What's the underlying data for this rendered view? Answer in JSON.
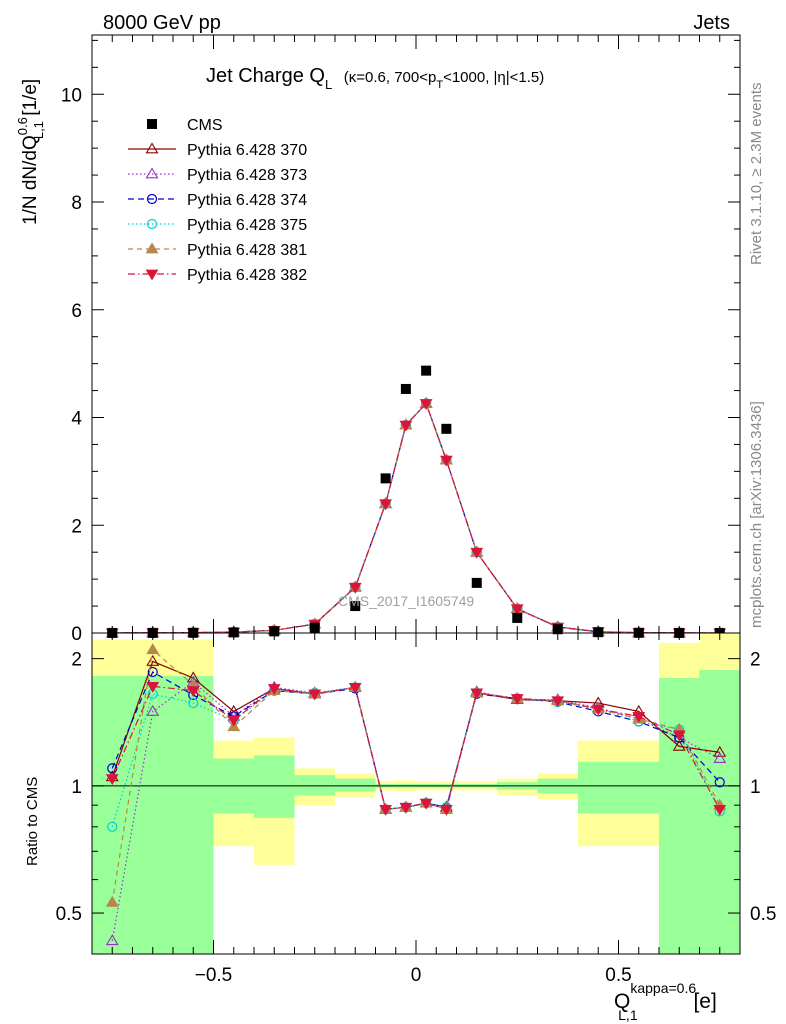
{
  "header": {
    "left": "8000 GeV pp",
    "right": "Jets"
  },
  "side_labels": {
    "rivet": "Rivet 3.1.10, ≥ 2.3M events",
    "mcplots": "mcplots.cern.ch [arXiv:1306.3436]"
  },
  "watermark": "CMS_2017_I1605749",
  "chart_data": {
    "type": "scatter",
    "title_main": "Jet Charge Q",
    "title_main_sub": "L",
    "title_cond_a": "(κ=0.6, 700<p",
    "title_cond_sub": "T",
    "title_cond_b": "<1000, |η|<1.5)",
    "ylabel_main_a": "1/N dN/dQ",
    "ylabel_main_sup": "0.6",
    "ylabel_main_sub": "L,1",
    "ylabel_main_b": " [1/e]",
    "ylabel_ratio": "Ratio to CMS",
    "xlabel_a": "Q",
    "xlabel_sup": "kappa=0.6",
    "xlabel_sub": "L,1",
    "xlabel_b": " [e]",
    "xlim": [
      -0.8,
      0.8
    ],
    "ylim_main": [
      0,
      11.1
    ],
    "ylim_ratio": [
      0.4,
      2.3
    ],
    "ratio_log_scale": true,
    "yticks_main": [
      "0",
      "2",
      "4",
      "6",
      "8",
      "10"
    ],
    "yticks_ratio": [
      "0.5",
      "1",
      "2"
    ],
    "xticks": [
      "−0.5",
      "0",
      "0.5"
    ],
    "legend_position": "top-left",
    "x": [
      -0.75,
      -0.65,
      -0.55,
      -0.45,
      -0.35,
      -0.25,
      -0.15,
      -0.075,
      -0.025,
      0.025,
      0.075,
      0.15,
      0.25,
      0.35,
      0.45,
      0.55,
      0.65,
      0.75
    ],
    "data": {
      "name": "CMS",
      "color": "#000000",
      "values": [
        0.001,
        0.002,
        0.004,
        0.011,
        0.03,
        0.1,
        0.5,
        2.87,
        4.53,
        4.87,
        3.79,
        0.93,
        0.28,
        0.07,
        0.015,
        0.004,
        0.0015,
        0.001
      ]
    },
    "band_edges": [
      -0.8,
      -0.6,
      -0.5,
      -0.4,
      -0.3,
      -0.2,
      -0.1,
      -0.05,
      0.0,
      0.05,
      0.1,
      0.2,
      0.3,
      0.4,
      0.5,
      0.6,
      0.7,
      0.8
    ],
    "band_yellow": [
      [
        0.4,
        2.22
      ],
      [
        0.4,
        2.22
      ],
      [
        0.72,
        1.28
      ],
      [
        0.65,
        1.3
      ],
      [
        0.9,
        1.1
      ],
      [
        0.94,
        1.07
      ],
      [
        0.975,
        1.025
      ],
      [
        0.97,
        1.03
      ],
      [
        0.975,
        1.025
      ],
      [
        0.975,
        1.025
      ],
      [
        0.975,
        1.025
      ],
      [
        0.95,
        1.04
      ],
      [
        0.93,
        1.07
      ],
      [
        0.72,
        1.28
      ],
      [
        0.72,
        1.28
      ],
      [
        0.4,
        2.18
      ],
      [
        0.4,
        2.3
      ]
    ],
    "band_green": [
      [
        0.4,
        1.82
      ],
      [
        0.4,
        1.82
      ],
      [
        0.86,
        1.16
      ],
      [
        0.84,
        1.18
      ],
      [
        0.95,
        1.06
      ],
      [
        0.97,
        1.04
      ],
      [
        0.99,
        1.01
      ],
      [
        0.99,
        1.01
      ],
      [
        0.99,
        1.01
      ],
      [
        0.99,
        1.01
      ],
      [
        0.99,
        1.01
      ],
      [
        0.98,
        1.02
      ],
      [
        0.96,
        1.04
      ],
      [
        0.86,
        1.14
      ],
      [
        0.86,
        1.14
      ],
      [
        0.4,
        1.8
      ],
      [
        0.4,
        1.88
      ]
    ],
    "series": [
      {
        "name": "Pythia 6.428 370",
        "color": "#8b0000",
        "dash": "",
        "marker": "triangle-open",
        "values": [
          0.0011,
          0.004,
          0.0072,
          0.017,
          0.05,
          0.165,
          0.85,
          2.4,
          3.86,
          4.26,
          3.21,
          1.5,
          0.45,
          0.112,
          0.024,
          0.0056,
          0.0018,
          0.0012
        ],
        "ratio": [
          1.05,
          1.97,
          1.8,
          1.5,
          1.7,
          1.65,
          1.71,
          0.88,
          0.89,
          0.91,
          0.89,
          1.66,
          1.6,
          1.59,
          1.57,
          1.5,
          1.24,
          1.2
        ]
      },
      {
        "name": "Pythia 6.428 373",
        "color": "#9932cc",
        "dash": "1.5,2.5",
        "marker": "triangle-open",
        "values": [
          0.0004,
          0.003,
          0.007,
          0.016,
          0.05,
          0.165,
          0.85,
          2.4,
          3.86,
          4.26,
          3.21,
          1.5,
          0.45,
          0.112,
          0.023,
          0.0055,
          0.0018,
          0.0012
        ],
        "ratio": [
          0.43,
          1.5,
          1.76,
          1.46,
          1.71,
          1.66,
          1.71,
          0.88,
          0.89,
          0.91,
          0.88,
          1.67,
          1.6,
          1.6,
          1.53,
          1.44,
          1.3,
          1.16
        ]
      },
      {
        "name": "Pythia 6.428 374",
        "color": "#0000cd",
        "dash": "6,4",
        "marker": "circle-open",
        "values": [
          0.0011,
          0.0037,
          0.0066,
          0.016,
          0.05,
          0.165,
          0.85,
          2.4,
          3.86,
          4.26,
          3.21,
          1.5,
          0.45,
          0.11,
          0.022,
          0.0054,
          0.0018,
          0.001
        ],
        "ratio": [
          1.1,
          1.86,
          1.64,
          1.46,
          1.68,
          1.65,
          1.7,
          0.88,
          0.89,
          0.91,
          0.89,
          1.65,
          1.61,
          1.58,
          1.5,
          1.42,
          1.3,
          1.02
        ]
      },
      {
        "name": "Pythia 6.428 375",
        "color": "#00ced1",
        "dash": "1.5,2.5",
        "marker": "circle-open",
        "values": [
          0.0008,
          0.0033,
          0.0062,
          0.016,
          0.05,
          0.165,
          0.85,
          2.4,
          3.86,
          4.26,
          3.21,
          1.5,
          0.45,
          0.11,
          0.022,
          0.0054,
          0.0018,
          0.0009
        ],
        "ratio": [
          0.8,
          1.65,
          1.57,
          1.43,
          1.68,
          1.66,
          1.71,
          0.88,
          0.89,
          0.91,
          0.89,
          1.66,
          1.61,
          1.58,
          1.52,
          1.42,
          1.36,
          0.87
        ]
      },
      {
        "name": "Pythia 6.428 381",
        "color": "#b8864b",
        "dash": "5,4",
        "marker": "triangle-filled",
        "values": [
          0.0005,
          0.0042,
          0.007,
          0.015,
          0.05,
          0.165,
          0.85,
          2.4,
          3.86,
          4.26,
          3.21,
          1.5,
          0.45,
          0.11,
          0.023,
          0.0055,
          0.0018,
          0.0009
        ],
        "ratio": [
          0.53,
          2.1,
          1.73,
          1.38,
          1.68,
          1.65,
          1.71,
          0.88,
          0.89,
          0.91,
          0.88,
          1.66,
          1.61,
          1.59,
          1.52,
          1.44,
          1.36,
          0.9
        ]
      },
      {
        "name": "Pythia 6.428 382",
        "color": "#dc143c",
        "dash": "7,3,1.5,3",
        "marker": "triangle-down-filled",
        "values": [
          0.001,
          0.0035,
          0.0066,
          0.016,
          0.05,
          0.165,
          0.85,
          2.4,
          3.86,
          4.26,
          3.21,
          1.5,
          0.45,
          0.11,
          0.023,
          0.0055,
          0.0018,
          0.0009
        ],
        "ratio": [
          1.04,
          1.72,
          1.68,
          1.43,
          1.7,
          1.65,
          1.71,
          0.88,
          0.89,
          0.91,
          0.88,
          1.66,
          1.61,
          1.59,
          1.52,
          1.46,
          1.32,
          0.88
        ]
      }
    ]
  }
}
